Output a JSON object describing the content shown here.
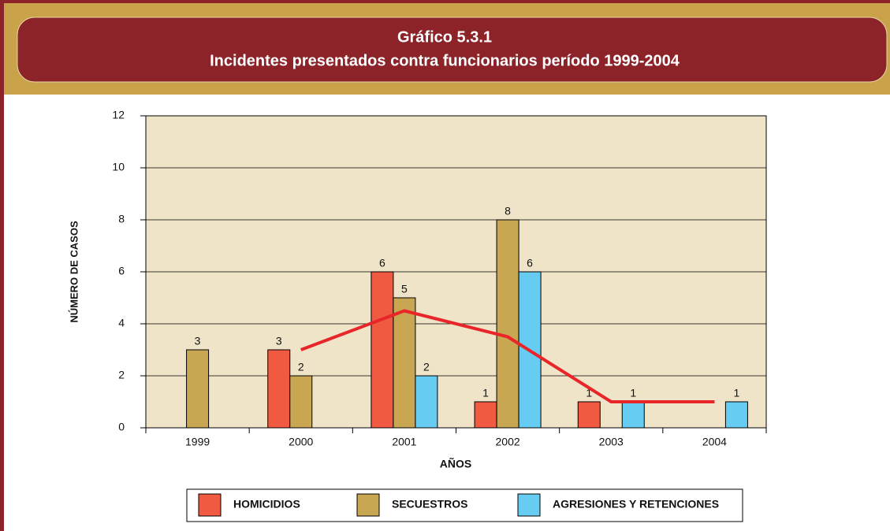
{
  "chart_data": {
    "type": "bar",
    "title": "Gráfico 5.3.1",
    "subtitle": "Incidentes presentados contra funcionarios período 1999-2004",
    "x_label": "AÑOS",
    "y_label": "NÚMERO DE CASOS",
    "categories": [
      "1999",
      "2000",
      "2001",
      "2002",
      "2003",
      "2004"
    ],
    "series": [
      {
        "name": "HOMICIDIOS",
        "color": "#f05a40",
        "values": [
          null,
          3,
          6,
          1,
          1,
          null
        ]
      },
      {
        "name": "SECUESTROS",
        "color": "#c9a652",
        "values": [
          3,
          2,
          5,
          8,
          null,
          null
        ]
      },
      {
        "name": "AGRESIONES Y RETENCIONES",
        "color": "#66ccf2",
        "values": [
          null,
          null,
          2,
          6,
          1,
          1
        ]
      }
    ],
    "line": {
      "type": "line",
      "color": "#e8262a",
      "values": [
        null,
        3,
        4.5,
        3.5,
        1,
        1
      ]
    },
    "ylim": [
      0,
      12
    ],
    "yticks": [
      0,
      2,
      4,
      6,
      8,
      10,
      12
    ],
    "grid": true
  }
}
